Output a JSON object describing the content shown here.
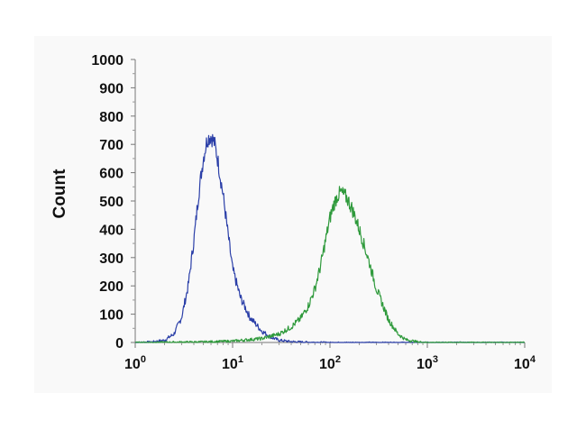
{
  "chart_data": {
    "type": "line",
    "xscale": "log",
    "xlabel": "",
    "ylabel": "Count",
    "xlim": [
      1,
      10000
    ],
    "ylim": [
      0,
      1000
    ],
    "y_ticks": [
      0,
      100,
      200,
      300,
      400,
      500,
      600,
      700,
      800,
      900,
      1000
    ],
    "x_ticks": [
      {
        "value": 1,
        "base": "10",
        "exp": "0"
      },
      {
        "value": 10,
        "base": "10",
        "exp": "1"
      },
      {
        "value": 100,
        "base": "10",
        "exp": "2"
      },
      {
        "value": 1000,
        "base": "10",
        "exp": "3"
      },
      {
        "value": 10000,
        "base": "10",
        "exp": "4"
      }
    ],
    "grid": false,
    "series": [
      {
        "color": "#2b3fa8",
        "x": [
          1,
          1.5,
          2,
          2.5,
          3,
          3.5,
          4,
          4.5,
          5,
          5.5,
          6,
          6.5,
          7,
          8,
          9,
          10,
          12,
          15,
          20,
          25,
          30,
          40,
          60,
          100,
          1000,
          10000
        ],
        "y": [
          0,
          2,
          8,
          30,
          90,
          200,
          360,
          530,
          650,
          720,
          730,
          705,
          650,
          520,
          380,
          260,
          160,
          90,
          40,
          18,
          8,
          3,
          1,
          0,
          0,
          0
        ]
      },
      {
        "color": "#2f9a3c",
        "x": [
          1,
          5,
          10,
          20,
          30,
          40,
          50,
          60,
          70,
          80,
          90,
          100,
          110,
          120,
          130,
          150,
          170,
          200,
          250,
          300,
          400,
          500,
          600,
          800,
          1000,
          10000
        ],
        "y": [
          0,
          2,
          5,
          14,
          30,
          55,
          85,
          130,
          190,
          270,
          360,
          440,
          490,
          520,
          530,
          510,
          470,
          400,
          290,
          190,
          80,
          30,
          10,
          2,
          0,
          0
        ]
      }
    ]
  }
}
